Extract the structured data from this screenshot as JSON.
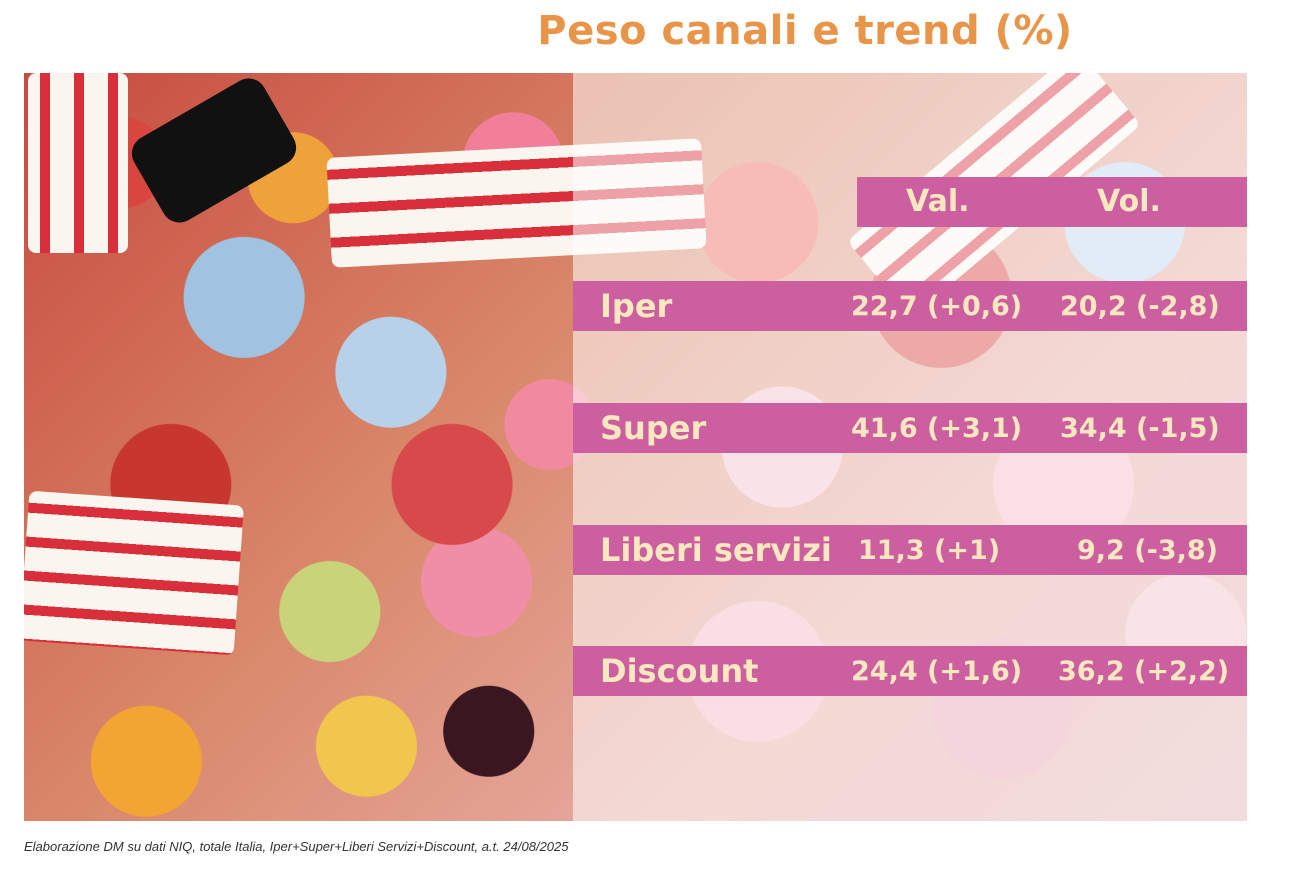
{
  "title": "Peso canali e trend (%)",
  "chart_data": {
    "type": "table",
    "title": "Peso canali e trend (%)",
    "columns": [
      "Val.",
      "Vol."
    ],
    "rows": [
      {
        "label": "Iper",
        "val": "22,7 (+0,6)",
        "vol": "20,2 (-2,8)"
      },
      {
        "label": "Super",
        "val": "41,6 (+3,1)",
        "vol": "34,4 (-1,5)"
      },
      {
        "label": "Liberi servizi",
        "val": "11,3 (+1)",
        "vol": "9,2 (-3,8)"
      },
      {
        "label": "Discount",
        "val": "24,4 (+1,6)",
        "vol": "36,2 (+2,2)"
      }
    ]
  },
  "footnote": "Elaborazione DM su dati NIQ, totale Italia, Iper+Super+Liberi Servizi+Discount, a.t. 24/08/2025",
  "colors": {
    "title": "#e8954a",
    "bar": "#cc5f9f",
    "bar_text": "#fbe7c0"
  }
}
